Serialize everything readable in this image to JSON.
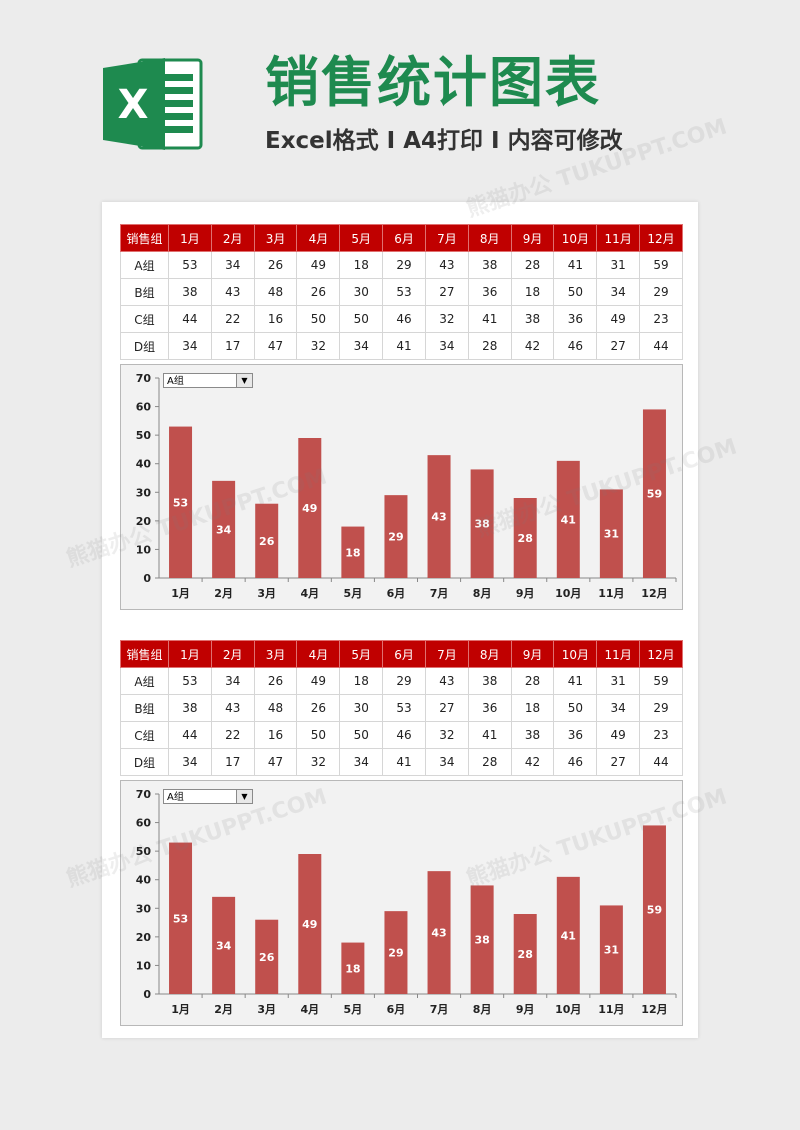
{
  "header": {
    "title": "销售统计图表",
    "subtitle": "Excel格式 I A4打印 I 内容可修改",
    "logo_letter": "X"
  },
  "watermark": "熊猫办公 TUKUPPT.COM",
  "colors": {
    "header_red": "#c00000",
    "bar": "#c0504d",
    "brand_green": "#1e8a4f"
  },
  "table": {
    "headers": [
      "销售组",
      "1月",
      "2月",
      "3月",
      "4月",
      "5月",
      "6月",
      "7月",
      "8月",
      "9月",
      "10月",
      "11月",
      "12月"
    ],
    "rows": [
      {
        "label": "A组",
        "values": [
          53,
          34,
          26,
          49,
          18,
          29,
          43,
          38,
          28,
          41,
          31,
          59
        ]
      },
      {
        "label": "B组",
        "values": [
          38,
          43,
          48,
          26,
          30,
          53,
          27,
          36,
          18,
          50,
          34,
          29
        ]
      },
      {
        "label": "C组",
        "values": [
          44,
          22,
          16,
          50,
          50,
          46,
          32,
          41,
          38,
          36,
          49,
          23
        ]
      },
      {
        "label": "D组",
        "values": [
          34,
          17,
          47,
          32,
          34,
          41,
          34,
          28,
          42,
          46,
          27,
          44
        ]
      }
    ]
  },
  "dropdown": {
    "selected": "A组",
    "arrow_icon": "chevron-down-icon"
  },
  "chart_data": [
    {
      "type": "bar",
      "categories": [
        "1月",
        "2月",
        "3月",
        "4月",
        "5月",
        "6月",
        "7月",
        "8月",
        "9月",
        "10月",
        "11月",
        "12月"
      ],
      "values": [
        53,
        34,
        26,
        49,
        18,
        29,
        43,
        38,
        28,
        41,
        31,
        59
      ],
      "ylim": [
        0,
        70
      ],
      "yticks": [
        0,
        10,
        20,
        30,
        40,
        50,
        60,
        70
      ],
      "data_labels": true,
      "grid": false
    },
    {
      "type": "bar",
      "categories": [
        "1月",
        "2月",
        "3月",
        "4月",
        "5月",
        "6月",
        "7月",
        "8月",
        "9月",
        "10月",
        "11月",
        "12月"
      ],
      "values": [
        53,
        34,
        26,
        49,
        18,
        29,
        43,
        38,
        28,
        41,
        31,
        59
      ],
      "ylim": [
        0,
        70
      ],
      "yticks": [
        0,
        10,
        20,
        30,
        40,
        50,
        60,
        70
      ],
      "data_labels": true,
      "grid": false
    }
  ]
}
